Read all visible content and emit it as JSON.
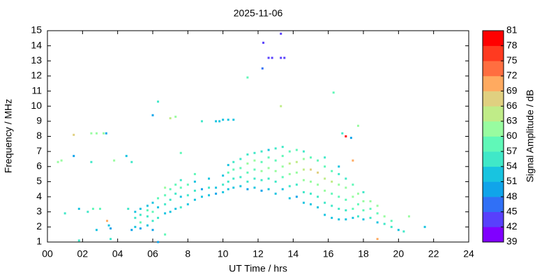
{
  "chart_data": {
    "type": "scatter",
    "title": "2025-11-06",
    "x_label": "UT Time / hrs",
    "y_label": "Frequency / MHz",
    "xlim": [
      0,
      24
    ],
    "xticks": [
      {
        "value": 0,
        "label": "00"
      },
      {
        "value": 2,
        "label": "02"
      },
      {
        "value": 4,
        "label": "04"
      },
      {
        "value": 6,
        "label": "06"
      },
      8,
      10,
      12,
      14,
      16,
      18,
      20,
      22,
      24
    ],
    "ylim": [
      1,
      15
    ],
    "yticks": [
      1,
      2,
      3,
      4,
      5,
      6,
      7,
      8,
      9,
      10,
      11,
      12,
      13,
      14,
      15
    ],
    "colorbar": {
      "label": "Signal Amplitude / dB",
      "lim": [
        39,
        81
      ],
      "ticks": [
        39,
        42,
        45,
        48,
        51,
        54,
        57,
        60,
        63,
        66,
        69,
        72,
        75,
        78,
        81
      ],
      "colors": [
        "#8000ff",
        "#5840fc",
        "#3070f6",
        "#10a4ea",
        "#18c4e0",
        "#40e8c8",
        "#60f8b8",
        "#98fca0",
        "#c0ec88",
        "#e0d080",
        "#ffaa60",
        "#ff6e40",
        "#ff3a20",
        "#ff0000"
      ]
    },
    "points": [
      {
        "x": 0.6,
        "y": 6.3,
        "value": 60
      },
      {
        "x": 0.8,
        "y": 6.4,
        "value": 60
      },
      {
        "x": 1.0,
        "y": 2.9,
        "value": 54
      },
      {
        "x": 1.5,
        "y": 8.1,
        "value": 66
      },
      {
        "x": 1.5,
        "y": 6.7,
        "value": 50
      },
      {
        "x": 1.8,
        "y": 1.1,
        "value": 54
      },
      {
        "x": 1.8,
        "y": 3.2,
        "value": 51
      },
      {
        "x": 2.3,
        "y": 3.0,
        "value": 54
      },
      {
        "x": 2.5,
        "y": 8.2,
        "value": 60
      },
      {
        "x": 2.5,
        "y": 6.3,
        "value": 54
      },
      {
        "x": 2.6,
        "y": 3.2,
        "value": 57
      },
      {
        "x": 2.8,
        "y": 8.2,
        "value": 60
      },
      {
        "x": 3.0,
        "y": 3.2,
        "value": 57
      },
      {
        "x": 3.2,
        "y": 8.2,
        "value": 60
      },
      {
        "x": 3.35,
        "y": 8.2,
        "value": 48
      },
      {
        "x": 2.8,
        "y": 1.8,
        "value": 51
      },
      {
        "x": 3.4,
        "y": 2.4,
        "value": 69
      },
      {
        "x": 3.5,
        "y": 2.1,
        "value": 51
      },
      {
        "x": 3.6,
        "y": 1.9,
        "value": 48
      },
      {
        "x": 3.6,
        "y": 1.2,
        "value": 54
      },
      {
        "x": 3.8,
        "y": 6.4,
        "value": 60
      },
      {
        "x": 4.5,
        "y": 6.7,
        "value": 51
      },
      {
        "x": 4.6,
        "y": 3.2,
        "value": 54
      },
      {
        "x": 4.8,
        "y": 6.3,
        "value": 54
      },
      {
        "x": 4.8,
        "y": 1.8,
        "value": 48
      },
      {
        "x": 5.0,
        "y": 2.0,
        "value": 51
      },
      {
        "x": 5.0,
        "y": 2.6,
        "value": 54
      },
      {
        "x": 5.0,
        "y": 3.0,
        "value": 51
      },
      {
        "x": 5.3,
        "y": 1.9,
        "value": 48
      },
      {
        "x": 5.3,
        "y": 2.3,
        "value": 57
      },
      {
        "x": 5.3,
        "y": 2.8,
        "value": 54
      },
      {
        "x": 5.3,
        "y": 3.2,
        "value": 51
      },
      {
        "x": 5.7,
        "y": 2.1,
        "value": 51
      },
      {
        "x": 5.7,
        "y": 2.7,
        "value": 54
      },
      {
        "x": 5.7,
        "y": 3.1,
        "value": 57
      },
      {
        "x": 5.7,
        "y": 3.4,
        "value": 51
      },
      {
        "x": 6.0,
        "y": 1.8,
        "value": 48
      },
      {
        "x": 6.0,
        "y": 2.4,
        "value": 54
      },
      {
        "x": 6.0,
        "y": 3.0,
        "value": 57
      },
      {
        "x": 6.0,
        "y": 3.6,
        "value": 51
      },
      {
        "x": 6.0,
        "y": 9.4,
        "value": 48
      },
      {
        "x": 6.3,
        "y": 1.0,
        "value": 48
      },
      {
        "x": 6.3,
        "y": 2.6,
        "value": 54
      },
      {
        "x": 6.3,
        "y": 3.3,
        "value": 51
      },
      {
        "x": 6.3,
        "y": 3.9,
        "value": 57
      },
      {
        "x": 6.3,
        "y": 10.3,
        "value": 54
      },
      {
        "x": 6.7,
        "y": 2.9,
        "value": 51
      },
      {
        "x": 6.7,
        "y": 3.5,
        "value": 54
      },
      {
        "x": 6.7,
        "y": 4.1,
        "value": 57
      },
      {
        "x": 6.7,
        "y": 4.6,
        "value": 60
      },
      {
        "x": 6.7,
        "y": 1.5,
        "value": 57
      },
      {
        "x": 7.0,
        "y": 3.0,
        "value": 51
      },
      {
        "x": 7.0,
        "y": 3.8,
        "value": 54
      },
      {
        "x": 7.0,
        "y": 4.5,
        "value": 57
      },
      {
        "x": 7.0,
        "y": 9.2,
        "value": 63
      },
      {
        "x": 7.3,
        "y": 3.2,
        "value": 51
      },
      {
        "x": 7.3,
        "y": 4.2,
        "value": 54
      },
      {
        "x": 7.3,
        "y": 4.8,
        "value": 57
      },
      {
        "x": 7.3,
        "y": 9.3,
        "value": 60
      },
      {
        "x": 7.6,
        "y": 3.3,
        "value": 54
      },
      {
        "x": 7.6,
        "y": 4.0,
        "value": 51
      },
      {
        "x": 7.6,
        "y": 4.6,
        "value": 57
      },
      {
        "x": 7.6,
        "y": 5.1,
        "value": 54
      },
      {
        "x": 7.6,
        "y": 6.9,
        "value": 57
      },
      {
        "x": 8.0,
        "y": 3.5,
        "value": 51
      },
      {
        "x": 8.0,
        "y": 4.1,
        "value": 54
      },
      {
        "x": 8.0,
        "y": 4.8,
        "value": 57
      },
      {
        "x": 8.4,
        "y": 3.8,
        "value": 51
      },
      {
        "x": 8.4,
        "y": 4.4,
        "value": 54
      },
      {
        "x": 8.4,
        "y": 5.0,
        "value": 51
      },
      {
        "x": 8.4,
        "y": 5.5,
        "value": 57
      },
      {
        "x": 8.8,
        "y": 4.0,
        "value": 51
      },
      {
        "x": 8.8,
        "y": 4.5,
        "value": 48
      },
      {
        "x": 8.8,
        "y": 9.0,
        "value": 54
      },
      {
        "x": 9.2,
        "y": 4.1,
        "value": 51
      },
      {
        "x": 9.2,
        "y": 4.6,
        "value": 54
      },
      {
        "x": 9.2,
        "y": 5.2,
        "value": 51
      },
      {
        "x": 9.6,
        "y": 4.2,
        "value": 48
      },
      {
        "x": 9.6,
        "y": 4.6,
        "value": 51
      },
      {
        "x": 9.6,
        "y": 9.0,
        "value": 51
      },
      {
        "x": 9.8,
        "y": 9.0,
        "value": 51
      },
      {
        "x": 10.0,
        "y": 4.3,
        "value": 51
      },
      {
        "x": 10.0,
        "y": 4.8,
        "value": 54
      },
      {
        "x": 10.0,
        "y": 5.4,
        "value": 51
      },
      {
        "x": 10.0,
        "y": 9.1,
        "value": 51
      },
      {
        "x": 10.3,
        "y": 4.5,
        "value": 51
      },
      {
        "x": 10.3,
        "y": 5.0,
        "value": 54
      },
      {
        "x": 10.3,
        "y": 5.6,
        "value": 57
      },
      {
        "x": 10.3,
        "y": 6.1,
        "value": 51
      },
      {
        "x": 10.3,
        "y": 9.1,
        "value": 51
      },
      {
        "x": 10.6,
        "y": 4.6,
        "value": 51
      },
      {
        "x": 10.6,
        "y": 5.2,
        "value": 54
      },
      {
        "x": 10.6,
        "y": 5.8,
        "value": 57
      },
      {
        "x": 10.6,
        "y": 6.3,
        "value": 54
      },
      {
        "x": 10.6,
        "y": 9.1,
        "value": 51
      },
      {
        "x": 11.0,
        "y": 4.7,
        "value": 51
      },
      {
        "x": 11.0,
        "y": 5.3,
        "value": 54
      },
      {
        "x": 11.0,
        "y": 5.9,
        "value": 57
      },
      {
        "x": 11.0,
        "y": 6.5,
        "value": 54
      },
      {
        "x": 11.4,
        "y": 4.5,
        "value": 48
      },
      {
        "x": 11.4,
        "y": 5.0,
        "value": 54
      },
      {
        "x": 11.4,
        "y": 5.6,
        "value": 57
      },
      {
        "x": 11.4,
        "y": 6.2,
        "value": 60
      },
      {
        "x": 11.4,
        "y": 6.8,
        "value": 54
      },
      {
        "x": 11.4,
        "y": 11.9,
        "value": 57
      },
      {
        "x": 11.8,
        "y": 4.6,
        "value": 51
      },
      {
        "x": 11.8,
        "y": 5.2,
        "value": 54
      },
      {
        "x": 11.8,
        "y": 5.8,
        "value": 57
      },
      {
        "x": 11.8,
        "y": 6.4,
        "value": 60
      },
      {
        "x": 11.8,
        "y": 6.9,
        "value": 54
      },
      {
        "x": 12.2,
        "y": 4.4,
        "value": 48
      },
      {
        "x": 12.2,
        "y": 5.1,
        "value": 54
      },
      {
        "x": 12.2,
        "y": 5.7,
        "value": 60
      },
      {
        "x": 12.2,
        "y": 6.3,
        "value": 57
      },
      {
        "x": 12.2,
        "y": 7.0,
        "value": 54
      },
      {
        "x": 12.25,
        "y": 12.5,
        "value": 45
      },
      {
        "x": 12.3,
        "y": 14.2,
        "value": 42
      },
      {
        "x": 12.6,
        "y": 4.5,
        "value": 51
      },
      {
        "x": 12.6,
        "y": 5.2,
        "value": 54
      },
      {
        "x": 12.6,
        "y": 5.9,
        "value": 60
      },
      {
        "x": 12.6,
        "y": 6.6,
        "value": 57
      },
      {
        "x": 12.6,
        "y": 7.1,
        "value": 51
      },
      {
        "x": 12.6,
        "y": 13.2,
        "value": 42
      },
      {
        "x": 12.8,
        "y": 13.2,
        "value": 42
      },
      {
        "x": 13.0,
        "y": 4.2,
        "value": 51
      },
      {
        "x": 13.0,
        "y": 5.0,
        "value": 54
      },
      {
        "x": 13.0,
        "y": 5.7,
        "value": 60
      },
      {
        "x": 13.0,
        "y": 6.4,
        "value": 57
      },
      {
        "x": 13.0,
        "y": 7.2,
        "value": 54
      },
      {
        "x": 13.3,
        "y": 14.8,
        "value": 42
      },
      {
        "x": 13.3,
        "y": 13.2,
        "value": 42
      },
      {
        "x": 13.3,
        "y": 10.0,
        "value": 63
      },
      {
        "x": 13.5,
        "y": 13.2,
        "value": 42
      },
      {
        "x": 13.4,
        "y": 4.5,
        "value": 51
      },
      {
        "x": 13.4,
        "y": 5.3,
        "value": 57
      },
      {
        "x": 13.4,
        "y": 6.0,
        "value": 60
      },
      {
        "x": 13.4,
        "y": 6.7,
        "value": 57
      },
      {
        "x": 13.4,
        "y": 7.3,
        "value": 54
      },
      {
        "x": 13.8,
        "y": 3.9,
        "value": 51
      },
      {
        "x": 13.8,
        "y": 4.7,
        "value": 54
      },
      {
        "x": 13.8,
        "y": 5.5,
        "value": 60
      },
      {
        "x": 13.8,
        "y": 6.2,
        "value": 63
      },
      {
        "x": 13.8,
        "y": 7.0,
        "value": 57
      },
      {
        "x": 14.2,
        "y": 4.0,
        "value": 48
      },
      {
        "x": 14.2,
        "y": 4.8,
        "value": 54
      },
      {
        "x": 14.2,
        "y": 5.6,
        "value": 60
      },
      {
        "x": 14.2,
        "y": 6.3,
        "value": 63
      },
      {
        "x": 14.2,
        "y": 7.1,
        "value": 57
      },
      {
        "x": 14.6,
        "y": 3.6,
        "value": 51
      },
      {
        "x": 14.6,
        "y": 4.3,
        "value": 54
      },
      {
        "x": 14.6,
        "y": 5.1,
        "value": 60
      },
      {
        "x": 14.6,
        "y": 5.8,
        "value": 63
      },
      {
        "x": 14.6,
        "y": 6.5,
        "value": 60
      },
      {
        "x": 14.6,
        "y": 7.0,
        "value": 54
      },
      {
        "x": 15.0,
        "y": 3.5,
        "value": 51
      },
      {
        "x": 15.0,
        "y": 4.2,
        "value": 54
      },
      {
        "x": 15.0,
        "y": 5.0,
        "value": 60
      },
      {
        "x": 15.0,
        "y": 5.8,
        "value": 66
      },
      {
        "x": 15.0,
        "y": 6.6,
        "value": 57
      },
      {
        "x": 15.4,
        "y": 3.3,
        "value": 51
      },
      {
        "x": 15.4,
        "y": 4.0,
        "value": 54
      },
      {
        "x": 15.4,
        "y": 4.8,
        "value": 60
      },
      {
        "x": 15.4,
        "y": 5.6,
        "value": 66
      },
      {
        "x": 15.4,
        "y": 6.4,
        "value": 57
      },
      {
        "x": 15.8,
        "y": 2.8,
        "value": 51
      },
      {
        "x": 15.8,
        "y": 3.6,
        "value": 54
      },
      {
        "x": 15.8,
        "y": 4.4,
        "value": 60
      },
      {
        "x": 15.8,
        "y": 5.2,
        "value": 63
      },
      {
        "x": 15.8,
        "y": 6.0,
        "value": 57
      },
      {
        "x": 15.8,
        "y": 6.6,
        "value": 54
      },
      {
        "x": 16.2,
        "y": 2.6,
        "value": 51
      },
      {
        "x": 16.2,
        "y": 3.4,
        "value": 54
      },
      {
        "x": 16.2,
        "y": 4.2,
        "value": 57
      },
      {
        "x": 16.2,
        "y": 5.0,
        "value": 63
      },
      {
        "x": 16.2,
        "y": 5.7,
        "value": 57
      },
      {
        "x": 16.3,
        "y": 10.9,
        "value": 57
      },
      {
        "x": 16.6,
        "y": 2.5,
        "value": 51
      },
      {
        "x": 16.6,
        "y": 3.2,
        "value": 54
      },
      {
        "x": 16.6,
        "y": 4.0,
        "value": 57
      },
      {
        "x": 16.6,
        "y": 4.8,
        "value": 60
      },
      {
        "x": 16.6,
        "y": 5.5,
        "value": 54
      },
      {
        "x": 16.6,
        "y": 6.0,
        "value": 51
      },
      {
        "x": 17.0,
        "y": 2.5,
        "value": 51
      },
      {
        "x": 17.0,
        "y": 3.1,
        "value": 54
      },
      {
        "x": 17.0,
        "y": 3.8,
        "value": 57
      },
      {
        "x": 17.0,
        "y": 4.6,
        "value": 60
      },
      {
        "x": 17.0,
        "y": 5.2,
        "value": 54
      },
      {
        "x": 16.8,
        "y": 8.2,
        "value": 54
      },
      {
        "x": 17.0,
        "y": 8.0,
        "value": 81
      },
      {
        "x": 17.3,
        "y": 7.9,
        "value": 48
      },
      {
        "x": 17.4,
        "y": 2.6,
        "value": 51
      },
      {
        "x": 17.4,
        "y": 3.2,
        "value": 57
      },
      {
        "x": 17.4,
        "y": 4.0,
        "value": 60
      },
      {
        "x": 17.4,
        "y": 4.8,
        "value": 57
      },
      {
        "x": 17.4,
        "y": 6.4,
        "value": 69
      },
      {
        "x": 17.7,
        "y": 8.7,
        "value": 60
      },
      {
        "x": 17.7,
        "y": 2.7,
        "value": 54
      },
      {
        "x": 17.7,
        "y": 3.5,
        "value": 57
      },
      {
        "x": 17.7,
        "y": 4.2,
        "value": 60
      },
      {
        "x": 18.0,
        "y": 2.5,
        "value": 51
      },
      {
        "x": 18.0,
        "y": 3.1,
        "value": 57
      },
      {
        "x": 18.0,
        "y": 3.7,
        "value": 60
      },
      {
        "x": 18.0,
        "y": 4.3,
        "value": 54
      },
      {
        "x": 18.4,
        "y": 2.6,
        "value": 54
      },
      {
        "x": 18.4,
        "y": 3.2,
        "value": 57
      },
      {
        "x": 18.4,
        "y": 3.7,
        "value": 60
      },
      {
        "x": 18.8,
        "y": 2.3,
        "value": 51
      },
      {
        "x": 18.8,
        "y": 2.9,
        "value": 57
      },
      {
        "x": 18.8,
        "y": 3.4,
        "value": 60
      },
      {
        "x": 18.8,
        "y": 1.2,
        "value": 69
      },
      {
        "x": 19.2,
        "y": 2.2,
        "value": 54
      },
      {
        "x": 19.2,
        "y": 2.7,
        "value": 60
      },
      {
        "x": 19.6,
        "y": 2.0,
        "value": 54
      },
      {
        "x": 19.6,
        "y": 2.4,
        "value": 57
      },
      {
        "x": 20.0,
        "y": 1.8,
        "value": 51
      },
      {
        "x": 20.3,
        "y": 1.7,
        "value": 54
      },
      {
        "x": 20.6,
        "y": 2.7,
        "value": 60
      },
      {
        "x": 21.5,
        "y": 2.0,
        "value": 51
      }
    ]
  }
}
